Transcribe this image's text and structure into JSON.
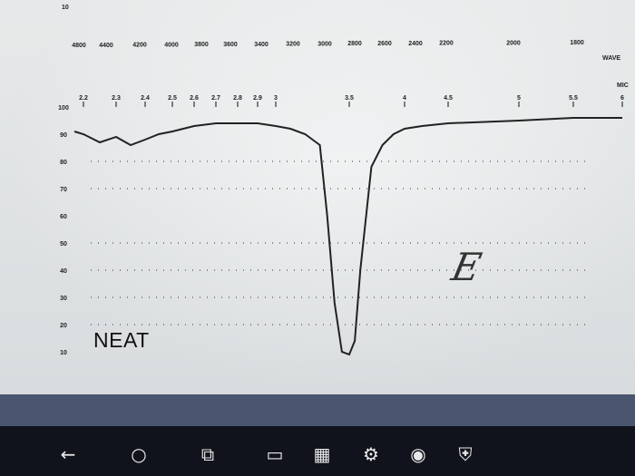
{
  "chart_data": {
    "type": "line",
    "top_axis": {
      "label": "WAVE",
      "ticks": [
        "4800",
        "4400",
        "4200",
        "4000",
        "3800",
        "3600",
        "3400",
        "3200",
        "3000",
        "2800",
        "2600",
        "2400",
        "2200",
        "2000",
        "1800"
      ]
    },
    "micron_axis": {
      "label": "MIC",
      "ticks": [
        "2.2",
        "2.3",
        "2.4",
        "2.5",
        "2.6",
        "2.7",
        "2.8",
        "2.9",
        "3",
        "3.5",
        "4",
        "4.5",
        "5",
        "5.5",
        "6"
      ]
    },
    "y_axis": {
      "ticks": [
        "100",
        "90",
        "80",
        "70",
        "60",
        "50",
        "40",
        "30",
        "20",
        "10"
      ],
      "ylim": [
        0,
        100
      ]
    },
    "top_label": "10",
    "series": [
      {
        "values_x_microns": [
          2.1,
          2.2,
          2.25,
          2.3,
          2.35,
          2.4,
          2.45,
          2.5,
          2.6,
          2.7,
          2.8,
          2.9,
          3.0,
          3.1,
          3.2,
          3.3,
          3.35,
          3.4,
          3.45,
          3.5,
          3.55,
          3.6,
          3.7,
          3.8,
          3.9,
          4.0,
          4.2,
          4.5,
          5.0,
          5.5,
          6.0
        ],
        "values_y_percent": [
          91,
          90,
          87,
          89,
          86,
          88,
          90,
          91,
          93,
          94,
          94,
          94,
          93,
          92,
          90,
          86,
          60,
          28,
          10,
          9,
          14,
          40,
          78,
          86,
          90,
          92,
          93,
          94,
          95,
          96,
          96
        ]
      }
    ],
    "annotations": [
      "NEAT",
      "E"
    ]
  },
  "taskbar": {
    "items": [
      "back-arrow",
      "cortana-circle",
      "task-view",
      "file-explorer",
      "store",
      "settings",
      "chrome",
      "shield"
    ]
  }
}
